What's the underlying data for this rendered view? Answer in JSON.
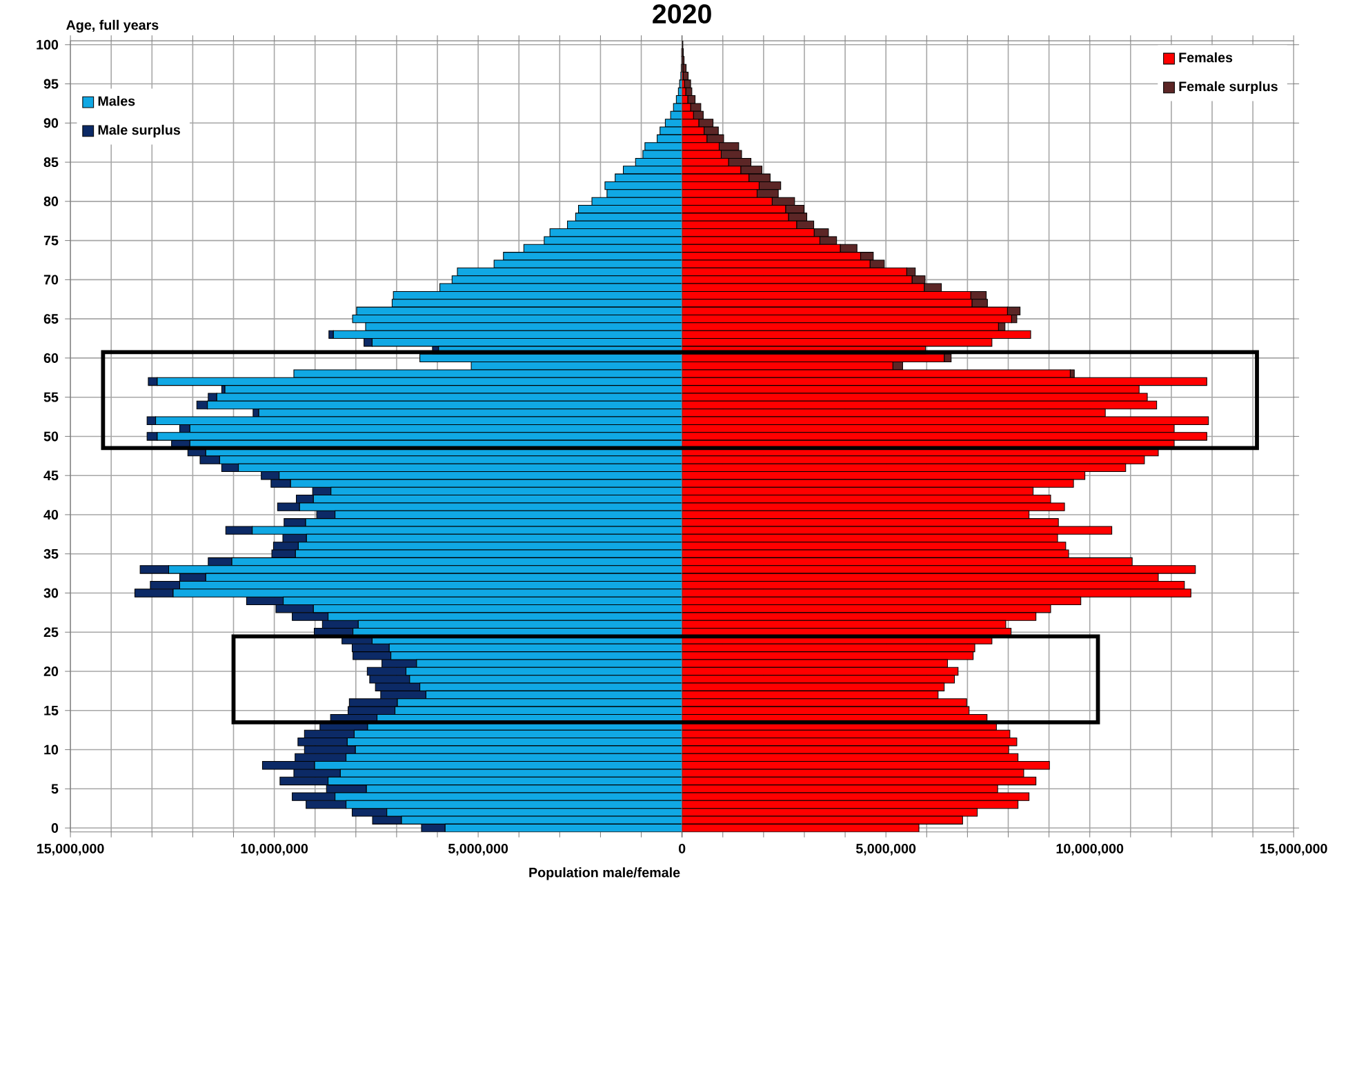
{
  "chart_data": [
    {
      "type": "bar",
      "orientation": "horizontal",
      "stacked": true,
      "title": "2020",
      "ylabel": "Age, full years",
      "xlabel": "Population male/female",
      "categories": [
        "100",
        null,
        null,
        null,
        null,
        "95",
        null,
        null,
        null,
        null,
        "90",
        null,
        null,
        null,
        null,
        "85",
        null,
        null,
        null,
        null,
        "80",
        null,
        null,
        null,
        null,
        "75",
        null,
        null,
        null,
        null,
        "70",
        null,
        null,
        null,
        null,
        "65",
        null,
        null,
        null,
        null,
        "60",
        null,
        null,
        null,
        null,
        "55",
        null,
        null,
        null,
        null,
        "50",
        null,
        null,
        null,
        null,
        "45",
        null,
        null,
        null,
        null,
        "40",
        null,
        null,
        null,
        null,
        "35",
        null,
        null,
        null,
        null,
        "30",
        null,
        null,
        null,
        null,
        "25",
        null,
        null,
        null,
        null,
        "20",
        null,
        null,
        null,
        null,
        "15",
        null,
        null,
        null,
        null,
        "10",
        null,
        null,
        null,
        null,
        "5",
        null,
        null,
        null,
        null,
        "0"
      ],
      "series": [
        {
          "name": "Males",
          "color": "#10a8e4",
          "values": [
            0,
            10000,
            10000,
            20000,
            30000,
            60000,
            90000,
            140000,
            210000,
            280000,
            410000,
            540000,
            610000,
            910000,
            960000,
            1140000,
            1440000,
            1640000,
            1890000,
            1840000,
            2210000,
            2540000,
            2610000,
            2810000,
            3240000,
            3380000,
            3880000,
            4380000,
            4610000,
            5510000,
            5640000,
            5940000,
            7080000,
            7110000,
            7980000,
            8080000,
            7760000,
            8550000,
            7600000,
            5970000,
            6430000,
            5170000,
            9520000,
            12870000,
            11210000,
            11410000,
            11640000,
            10380000,
            12910000,
            12070000,
            12870000,
            12070000,
            11680000,
            11340000,
            10880000,
            9880000,
            9600000,
            8610000,
            9040000,
            9380000,
            8510000,
            9230000,
            10540000,
            9210000,
            9410000,
            9480000,
            11040000,
            12590000,
            11680000,
            12320000,
            12480000,
            9780000,
            9040000,
            8680000,
            7940000,
            8070000,
            7600000,
            7180000,
            7140000,
            6510000,
            6770000,
            6680000,
            6430000,
            6280000,
            6980000,
            7040000,
            7480000,
            7710000,
            8040000,
            8210000,
            8010000,
            8240000,
            9010000,
            8380000,
            8680000,
            7740000,
            8510000,
            8240000,
            7240000,
            6880000,
            5810000
          ]
        },
        {
          "name": "Male surplus",
          "color": "#0c2a66",
          "values": [
            0,
            0,
            0,
            0,
            0,
            0,
            0,
            0,
            0,
            0,
            0,
            0,
            0,
            0,
            0,
            0,
            0,
            0,
            0,
            0,
            0,
            0,
            0,
            0,
            0,
            0,
            0,
            0,
            0,
            0,
            0,
            0,
            0,
            0,
            0,
            0,
            0,
            110000,
            200000,
            150000,
            0,
            0,
            0,
            220000,
            80000,
            210000,
            260000,
            140000,
            210000,
            250000,
            250000,
            450000,
            440000,
            480000,
            410000,
            440000,
            480000,
            450000,
            420000,
            540000,
            450000,
            530000,
            650000,
            580000,
            610000,
            580000,
            580000,
            700000,
            640000,
            720000,
            940000,
            900000,
            920000,
            880000,
            880000,
            950000,
            740000,
            910000,
            930000,
            850000,
            950000,
            980000,
            1090000,
            1110000,
            1180000,
            1150000,
            1140000,
            1170000,
            1220000,
            1210000,
            1250000,
            1250000,
            1280000,
            1140000,
            1180000,
            980000,
            1050000,
            980000,
            850000,
            710000,
            580000
          ]
        }
      ],
      "xlim": [
        15000000,
        0
      ],
      "xticks": [
        {
          "value": 15000000,
          "label": "15,000,000"
        },
        {
          "value": 14000000,
          "label": null
        },
        {
          "value": 13000000,
          "label": null
        },
        {
          "value": 12000000,
          "label": null
        },
        {
          "value": 11000000,
          "label": null
        },
        {
          "value": 10000000,
          "label": "10,000,000"
        },
        {
          "value": 9000000,
          "label": null
        },
        {
          "value": 8000000,
          "label": null
        },
        {
          "value": 7000000,
          "label": null
        },
        {
          "value": 6000000,
          "label": null
        },
        {
          "value": 5000000,
          "label": "5,000,000"
        },
        {
          "value": 4000000,
          "label": null
        },
        {
          "value": 3000000,
          "label": null
        },
        {
          "value": 2000000,
          "label": null
        },
        {
          "value": 1000000,
          "label": null
        },
        {
          "value": 0,
          "label": null
        }
      ],
      "grid": true,
      "legend": "top left"
    },
    {
      "type": "bar",
      "orientation": "horizontal",
      "stacked": true,
      "categories": [
        "100",
        null,
        null,
        null,
        null,
        "95",
        null,
        null,
        null,
        null,
        "90",
        null,
        null,
        null,
        null,
        "85",
        null,
        null,
        null,
        null,
        "80",
        null,
        null,
        null,
        null,
        "75",
        null,
        null,
        null,
        null,
        "70",
        null,
        null,
        null,
        null,
        "65",
        null,
        null,
        null,
        null,
        "60",
        null,
        null,
        null,
        null,
        "55",
        null,
        null,
        null,
        null,
        "50",
        null,
        null,
        null,
        null,
        "45",
        null,
        null,
        null,
        null,
        "40",
        null,
        null,
        null,
        null,
        "35",
        null,
        null,
        null,
        null,
        "30",
        null,
        null,
        null,
        null,
        "25",
        null,
        null,
        null,
        null,
        "20",
        null,
        null,
        null,
        null,
        "15",
        null,
        null,
        null,
        null,
        "10",
        null,
        null,
        null,
        null,
        "5",
        null,
        null,
        null,
        null,
        "0"
      ],
      "series": [
        {
          "name": "Females",
          "color": "#ff0000",
          "values": [
            0,
            10000,
            10000,
            20000,
            30000,
            60000,
            90000,
            140000,
            210000,
            280000,
            410000,
            540000,
            610000,
            910000,
            960000,
            1140000,
            1440000,
            1640000,
            1890000,
            1840000,
            2210000,
            2540000,
            2610000,
            2810000,
            3240000,
            3380000,
            3880000,
            4380000,
            4610000,
            5510000,
            5640000,
            5940000,
            7080000,
            7110000,
            7980000,
            8080000,
            7760000,
            8550000,
            7600000,
            5970000,
            6430000,
            5170000,
            9520000,
            12870000,
            11210000,
            11410000,
            11640000,
            10380000,
            12910000,
            12070000,
            12870000,
            12070000,
            11680000,
            11340000,
            10880000,
            9880000,
            9600000,
            8610000,
            9040000,
            9380000,
            8510000,
            9230000,
            10540000,
            9210000,
            9410000,
            9480000,
            11040000,
            12590000,
            11680000,
            12320000,
            12480000,
            9780000,
            9040000,
            8680000,
            7940000,
            8070000,
            7600000,
            7180000,
            7140000,
            6510000,
            6770000,
            6680000,
            6430000,
            6280000,
            6980000,
            7040000,
            7480000,
            7710000,
            8040000,
            8210000,
            8010000,
            8240000,
            9010000,
            8380000,
            8680000,
            7740000,
            8510000,
            8240000,
            7240000,
            6880000,
            5810000
          ]
        },
        {
          "name": "Female surplus",
          "color": "#5c2626",
          "values": [
            20000,
            20000,
            40000,
            80000,
            120000,
            150000,
            150000,
            180000,
            250000,
            240000,
            350000,
            350000,
            410000,
            480000,
            500000,
            550000,
            520000,
            520000,
            530000,
            520000,
            550000,
            450000,
            450000,
            420000,
            350000,
            410000,
            410000,
            310000,
            350000,
            210000,
            320000,
            420000,
            380000,
            380000,
            310000,
            130000,
            160000,
            0,
            0,
            0,
            170000,
            240000,
            100000,
            0,
            0,
            0,
            0,
            0,
            0,
            0,
            0,
            0,
            0,
            0,
            0,
            0,
            0,
            0,
            0,
            0,
            0,
            0,
            0,
            0,
            0,
            0,
            0,
            0,
            0,
            0,
            0,
            0,
            0,
            0,
            0,
            0,
            0,
            0,
            0,
            0,
            0,
            0,
            0,
            0,
            0,
            0,
            0,
            0,
            0,
            0,
            0,
            0,
            0,
            0,
            0,
            0,
            0,
            0,
            0,
            0,
            0
          ]
        }
      ],
      "xlim": [
        0,
        15000000
      ],
      "xticks": [
        0,
        {
          "value": 1000000,
          "label": null
        },
        {
          "value": 2000000,
          "label": null
        },
        {
          "value": 3000000,
          "label": null
        },
        {
          "value": 4000000,
          "label": null
        },
        {
          "value": 5000000,
          "label": "5,000,000"
        },
        {
          "value": 6000000,
          "label": null
        },
        {
          "value": 7000000,
          "label": null
        },
        {
          "value": 8000000,
          "label": null
        },
        {
          "value": 9000000,
          "label": null
        },
        {
          "value": 10000000,
          "label": "10,000,000"
        },
        {
          "value": 11000000,
          "label": null
        },
        {
          "value": 12000000,
          "label": null
        },
        {
          "value": 13000000,
          "label": null
        },
        {
          "value": 14000000,
          "label": null
        },
        {
          "value": 15000000,
          "label": "15,000,000"
        }
      ],
      "tick_labels": "x",
      "grid": true,
      "legend": "top right"
    }
  ]
}
